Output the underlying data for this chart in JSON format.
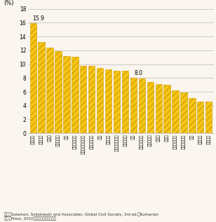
{
  "categories": [
    "オランダ",
    "ベルギー",
    "カナダ",
    "イスラエル",
    "英国",
    "アイルランド",
    "ニュージーランド",
    "スウェーデン",
    "米国",
    "フランス",
    "オーストラリア",
    "デンマーク",
    "日本",
    "オーストリア",
    "ノルウェー",
    "スイス",
    "ドイツ",
    "アルゼンチン",
    "フィンランド",
    "チリ",
    "スペイン",
    "イタリア"
  ],
  "values": [
    15.9,
    13.2,
    12.4,
    11.9,
    11.2,
    11.1,
    9.8,
    9.8,
    9.4,
    9.2,
    9.0,
    9.0,
    8.0,
    7.9,
    7.4,
    7.1,
    7.0,
    6.2,
    5.9,
    5.1,
    4.6,
    4.6
  ],
  "bar_color": "#F5C518",
  "hatch_color": "#D4A000",
  "ylim": [
    0,
    18
  ],
  "yticks": [
    0,
    2,
    4,
    6,
    8,
    10,
    12,
    14,
    16,
    18
  ],
  "annotation_first": "15.9",
  "annotation_first_idx": 0,
  "annotation_mid": "8.0",
  "annotation_mid_idx": 12,
  "bg_color": "#FAF5EE",
  "grid_color": "#BBBBBB",
  "ylabel_text": "(%)",
  "source_line1": "資料）Salamon, Sokolowski and Associates, Global Civil Society, 3rd ed.（Kumarian",
  "source_line2": "　　　Press, 2010）より国土交通省作成"
}
